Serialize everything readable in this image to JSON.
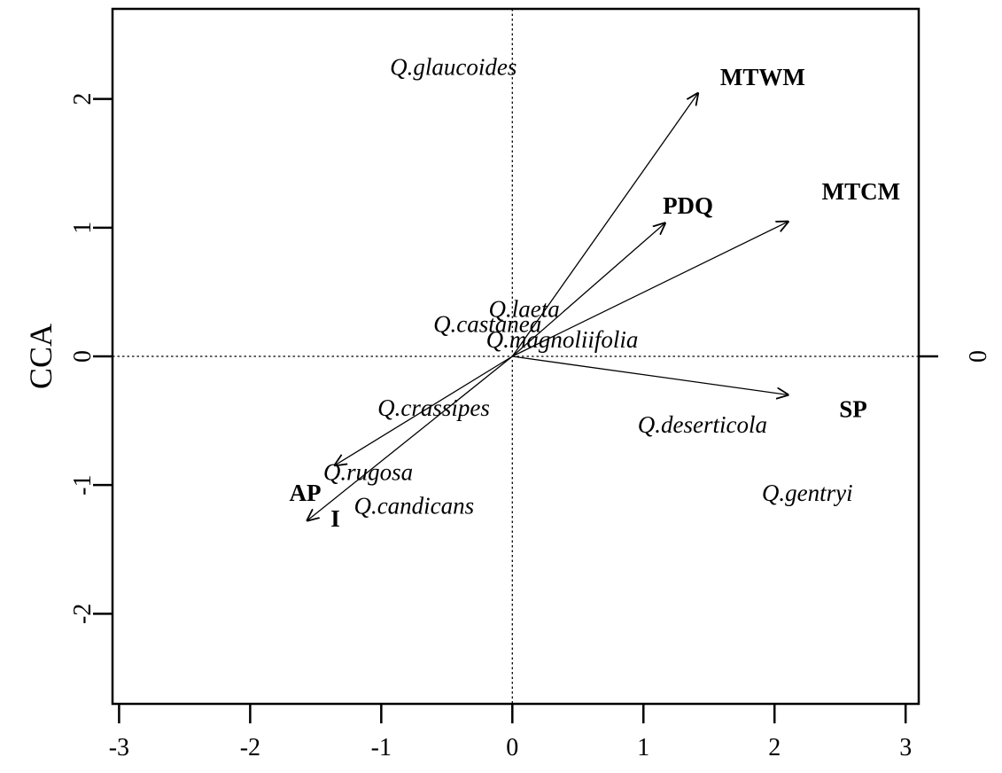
{
  "chart_data": {
    "type": "scatter",
    "subtype": "cca-biplot",
    "title": "",
    "xlabel": "",
    "ylabel": "CCA",
    "right_axis_label": "0",
    "xlim": [
      -3.05,
      3.1
    ],
    "ylim": [
      -2.7,
      2.7
    ],
    "x_ticks": [
      -3,
      -2,
      -1,
      0,
      1,
      2,
      3
    ],
    "y_ticks": [
      -2,
      -1,
      0,
      1,
      2
    ],
    "x_tick_labels": [
      "-3",
      "-2",
      "-1",
      "0",
      "1",
      "2",
      "3"
    ],
    "y_tick_labels": [
      "-2",
      "-1",
      "0",
      "1",
      "2"
    ],
    "reference_lines": {
      "x": 0,
      "y": 0,
      "style": "dotted"
    },
    "grid": false,
    "species": [
      {
        "label": "Q.glaucoides",
        "x": -0.45,
        "y": 2.25
      },
      {
        "label": "Q.laeta",
        "x": 0.09,
        "y": 0.37
      },
      {
        "label": "Q.castanea",
        "x": -0.19,
        "y": 0.25
      },
      {
        "label": "Q.magnoliifolia",
        "x": 0.38,
        "y": 0.13
      },
      {
        "label": "Q.crassipes",
        "x": -0.6,
        "y": -0.4
      },
      {
        "label": "Q.deserticola",
        "x": 1.45,
        "y": -0.53
      },
      {
        "label": "Q.rugosa",
        "x": -1.1,
        "y": -0.9
      },
      {
        "label": "Q.candicans",
        "x": -0.75,
        "y": -1.16
      },
      {
        "label": "Q.gentryi",
        "x": 2.25,
        "y": -1.06
      }
    ],
    "environmental_vectors": [
      {
        "label": "MTWM",
        "x": 1.42,
        "y": 2.05,
        "label_x": 1.91,
        "label_y": 2.17
      },
      {
        "label": "PDQ",
        "x": 1.17,
        "y": 1.04,
        "label_x": 1.34,
        "label_y": 1.17
      },
      {
        "label": "MTCM",
        "x": 2.11,
        "y": 1.05,
        "label_x": 2.66,
        "label_y": 1.28
      },
      {
        "label": "SP",
        "x": 2.11,
        "y": -0.3,
        "label_x": 2.6,
        "label_y": -0.41
      },
      {
        "label": "AP",
        "x": -1.36,
        "y": -0.85,
        "label_x": -1.58,
        "label_y": -1.06
      },
      {
        "label": "I",
        "x": -1.57,
        "y": -1.28,
        "label_x": -1.35,
        "label_y": -1.26
      }
    ]
  }
}
